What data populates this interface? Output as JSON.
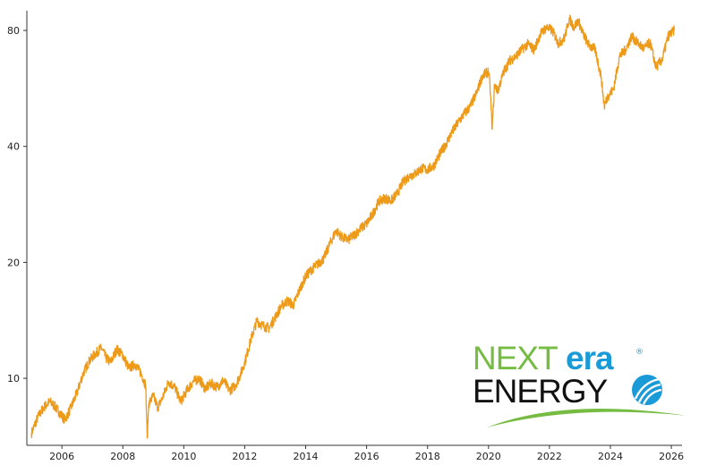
{
  "chart_data": {
    "type": "line",
    "title": "",
    "xlabel": "",
    "ylabel": "",
    "y_scale": "log",
    "grid": false,
    "xlim": [
      2004.85,
      2026.35
    ],
    "ylim": [
      6.7,
      90
    ],
    "x_ticks": [
      {
        "value": 2006,
        "label": "2006"
      },
      {
        "value": 2008,
        "label": "2008"
      },
      {
        "value": 2010,
        "label": "2010"
      },
      {
        "value": 2012,
        "label": "2012"
      },
      {
        "value": 2014,
        "label": "2014"
      },
      {
        "value": 2016,
        "label": "2016"
      },
      {
        "value": 2018,
        "label": "2018"
      },
      {
        "value": 2020,
        "label": "2020"
      },
      {
        "value": 2022,
        "label": "2022"
      },
      {
        "value": 2024,
        "label": "2024"
      },
      {
        "value": 2026,
        "label": "2026"
      }
    ],
    "y_ticks": [
      {
        "value": 10,
        "label": "10"
      },
      {
        "value": 20,
        "label": "20"
      },
      {
        "value": 40,
        "label": "40"
      },
      {
        "value": 80,
        "label": "80"
      }
    ],
    "series": [
      {
        "name": "",
        "color": "#ee9a19",
        "x": [
          2005.0,
          2005.2,
          2005.4,
          2005.6,
          2005.75,
          2005.9,
          2006.1,
          2006.3,
          2006.5,
          2006.7,
          2006.9,
          2007.1,
          2007.3,
          2007.45,
          2007.6,
          2007.8,
          2008.0,
          2008.2,
          2008.4,
          2008.6,
          2008.75,
          2008.8,
          2008.85,
          2009.0,
          2009.15,
          2009.3,
          2009.5,
          2009.7,
          2009.9,
          2010.1,
          2010.3,
          2010.5,
          2010.7,
          2010.9,
          2011.1,
          2011.3,
          2011.5,
          2011.7,
          2011.85,
          2012.0,
          2012.2,
          2012.4,
          2012.6,
          2012.8,
          2013.0,
          2013.2,
          2013.4,
          2013.6,
          2013.8,
          2014.0,
          2014.2,
          2014.4,
          2014.6,
          2014.8,
          2015.0,
          2015.2,
          2015.4,
          2015.6,
          2015.8,
          2016.0,
          2016.2,
          2016.4,
          2016.6,
          2016.8,
          2017.0,
          2017.2,
          2017.4,
          2017.6,
          2017.8,
          2018.0,
          2018.2,
          2018.4,
          2018.6,
          2018.8,
          2019.0,
          2019.2,
          2019.4,
          2019.6,
          2019.8,
          2020.0,
          2020.05,
          2020.12,
          2020.2,
          2020.3,
          2020.5,
          2020.7,
          2020.9,
          2021.1,
          2021.3,
          2021.5,
          2021.7,
          2021.9,
          2022.1,
          2022.3,
          2022.5,
          2022.65,
          2022.8,
          2022.95,
          2023.1,
          2023.3,
          2023.5,
          2023.7,
          2023.8,
          2023.9,
          2024.1,
          2024.3,
          2024.5,
          2024.7,
          2024.9,
          2025.1,
          2025.3,
          2025.5,
          2025.7,
          2025.9,
          2026.1
        ],
        "values": [
          7.2,
          7.9,
          8.4,
          8.7,
          8.5,
          8.2,
          7.8,
          8.4,
          9.2,
          10.3,
          11.1,
          11.6,
          12.0,
          11.3,
          11.0,
          11.9,
          11.5,
          10.6,
          10.9,
          10.3,
          9.6,
          7.0,
          8.6,
          9.0,
          8.4,
          8.9,
          9.8,
          9.5,
          8.7,
          9.3,
          9.8,
          10.0,
          9.4,
          9.7,
          9.5,
          9.9,
          9.3,
          9.6,
          10.2,
          11.0,
          12.6,
          14.1,
          13.7,
          13.5,
          14.4,
          15.4,
          15.9,
          15.5,
          17.0,
          18.4,
          19.2,
          19.8,
          20.5,
          22.4,
          24.2,
          23.2,
          22.9,
          23.6,
          24.5,
          25.2,
          26.7,
          28.8,
          29.4,
          28.9,
          30.1,
          32.4,
          33.5,
          34.0,
          35.1,
          34.8,
          35.6,
          38.2,
          40.5,
          43.5,
          46.1,
          48.6,
          50.8,
          54.8,
          61.0,
          62.6,
          57.6,
          44.3,
          58.0,
          55.6,
          62.5,
          66.9,
          68.6,
          71.5,
          73.8,
          71.2,
          78.3,
          81.5,
          79.9,
          74.0,
          76.6,
          86.0,
          81.6,
          84.8,
          78.5,
          73.2,
          71.4,
          60.5,
          50.8,
          53.8,
          56.2,
          68.6,
          71.4,
          77.2,
          74.2,
          71.7,
          74.5,
          64.2,
          67.3,
          77.4,
          80.1
        ]
      }
    ]
  },
  "logo": {
    "word_next": "NEXT",
    "word_era": "era",
    "word_energy": "ENERGY",
    "registered_mark": "®",
    "colors": {
      "next": "#76bc43",
      "era": "#1a9ad6",
      "energy": "#111111",
      "swoosh": "#76bc43",
      "globe": "#1a9ad6"
    }
  }
}
